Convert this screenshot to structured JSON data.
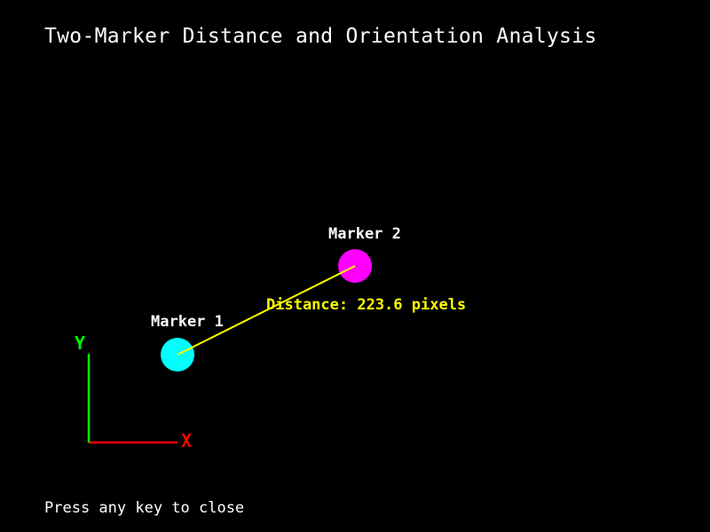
{
  "window": {
    "title": "Two-Marker Distance and Orientation Analysis",
    "hint": "Press any key to close"
  },
  "markers": [
    {
      "label": "Marker 1",
      "color": "#00ffff"
    },
    {
      "label": "Marker 2",
      "color": "#ff00ff"
    }
  ],
  "distance": {
    "label": "Distance: 223.6 pixels",
    "value": 223.6,
    "unit": "pixels",
    "color": "#ffff00"
  },
  "axes": {
    "x_label": "X",
    "y_label": "Y",
    "x_color": "#ff0000",
    "y_color": "#00ff00"
  }
}
